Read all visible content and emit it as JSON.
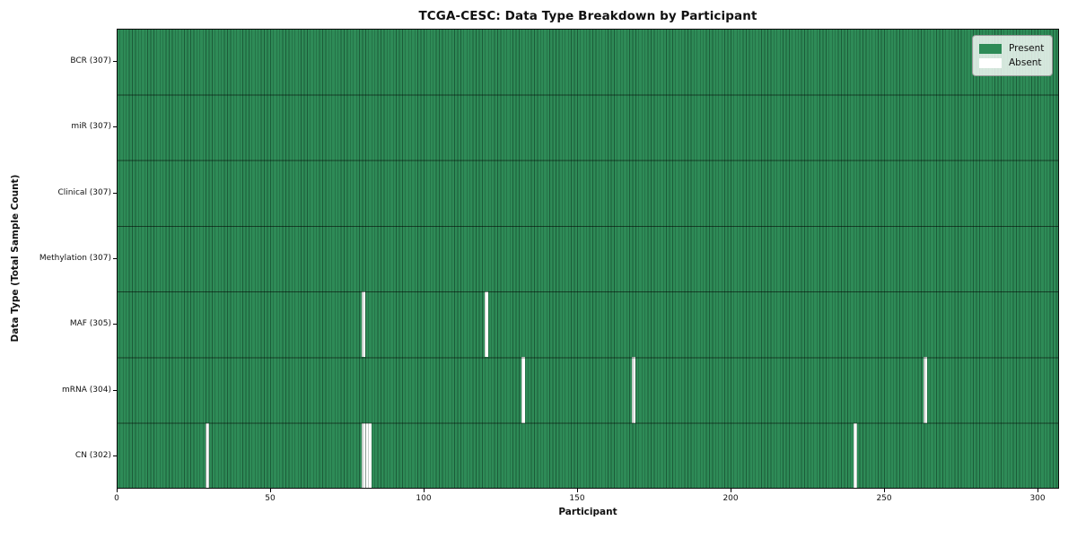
{
  "figure": {
    "title": "TCGA-CESC: Data Type Breakdown by Participant",
    "xlabel": "Participant",
    "ylabel": "Data Type (Total Sample Count)"
  },
  "legend": {
    "items": [
      {
        "label": "Present",
        "color": "#2e8b57"
      },
      {
        "label": "Absent",
        "color": "#ffffff"
      }
    ]
  },
  "chart_data": {
    "type": "heatmap",
    "title": "TCGA-CESC: Data Type Breakdown by Participant",
    "xlabel": "Participant",
    "ylabel": "Data Type (Total Sample Count)",
    "n_participants": 307,
    "xlim": [
      0,
      307
    ],
    "x_ticks": [
      0,
      50,
      100,
      150,
      200,
      250,
      300
    ],
    "grid": false,
    "legend_position": "upper right",
    "colors": {
      "present": "#2e8b57",
      "absent": "#ffffff"
    },
    "rows": [
      {
        "label": "BCR (307)",
        "name": "BCR",
        "present_count": 307,
        "absent_participants": []
      },
      {
        "label": "miR (307)",
        "name": "miR",
        "present_count": 307,
        "absent_participants": []
      },
      {
        "label": "Clinical (307)",
        "name": "Clinical",
        "present_count": 307,
        "absent_participants": []
      },
      {
        "label": "Methylation (307)",
        "name": "Methylation",
        "present_count": 307,
        "absent_participants": []
      },
      {
        "label": "MAF (305)",
        "name": "MAF",
        "present_count": 305,
        "absent_participants": [
          80,
          120
        ]
      },
      {
        "label": "mRNA (304)",
        "name": "mRNA",
        "present_count": 304,
        "absent_participants": [
          132,
          168,
          263
        ]
      },
      {
        "label": "CN (302)",
        "name": "CN",
        "present_count": 302,
        "absent_participants": [
          29,
          80,
          81,
          82,
          240
        ]
      }
    ]
  }
}
